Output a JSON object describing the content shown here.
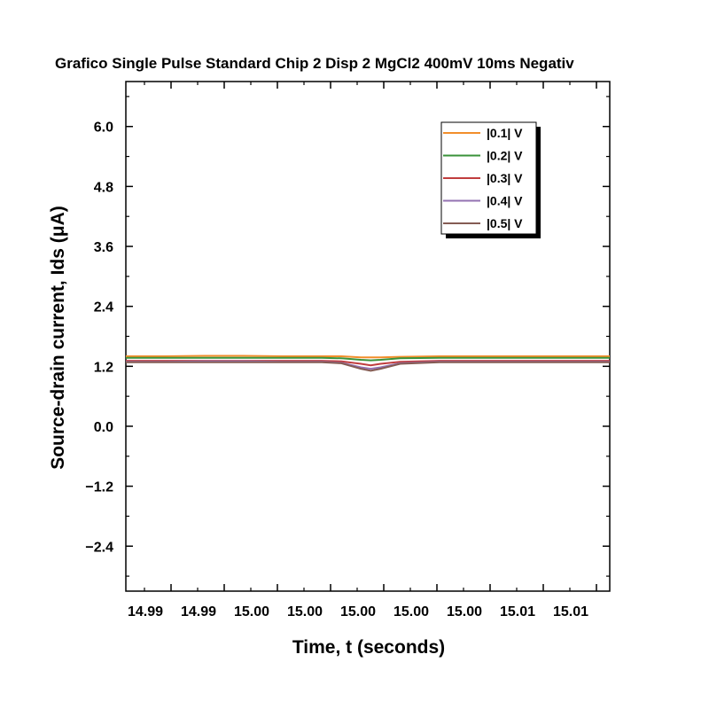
{
  "chart_data": {
    "type": "line",
    "title": "Grafico Single Pulse Standard Chip 2 Disp 2 MgCl2 400mV 10ms Negativ",
    "xlabel": "Time, t (seconds)",
    "ylabel": "Source-drain current, Ids (μA)",
    "x_ticks": [
      "14.99",
      "14.99",
      "15.00",
      "15.00",
      "15.00",
      "15.00",
      "15.00",
      "15.01",
      "15.01"
    ],
    "y_ticks": [
      6.0,
      4.8,
      3.6,
      2.4,
      1.2,
      0.0,
      -1.2,
      -2.4
    ],
    "y_tick_labels": [
      "6.0",
      "4.8",
      "3.6",
      "2.4",
      "1.2",
      "0.0",
      "−1.2",
      "−2.4"
    ],
    "ylim": [
      -3.3,
      6.9
    ],
    "xlim": [
      14.988,
      15.0127
    ],
    "grid": false,
    "legend_position": "top-right",
    "x": [
      14.988,
      14.99,
      14.992,
      14.994,
      14.996,
      14.998,
      14.999,
      15.0,
      15.0005,
      15.001,
      15.002,
      15.004,
      15.006,
      15.008,
      15.01,
      15.012,
      15.0127
    ],
    "series": [
      {
        "name": "|0.1| V",
        "color": "#f28e2b",
        "values": [
          1.4,
          1.4,
          1.41,
          1.41,
          1.4,
          1.4,
          1.4,
          1.38,
          1.38,
          1.38,
          1.39,
          1.4,
          1.4,
          1.4,
          1.4,
          1.4,
          1.4
        ]
      },
      {
        "name": "|0.2| V",
        "color": "#3a923a",
        "values": [
          1.37,
          1.37,
          1.37,
          1.37,
          1.37,
          1.37,
          1.36,
          1.33,
          1.32,
          1.33,
          1.36,
          1.37,
          1.37,
          1.37,
          1.37,
          1.37,
          1.37
        ]
      },
      {
        "name": "|0.3| V",
        "color": "#c03d3e",
        "values": [
          1.31,
          1.31,
          1.31,
          1.31,
          1.31,
          1.31,
          1.3,
          1.25,
          1.22,
          1.25,
          1.29,
          1.31,
          1.31,
          1.31,
          1.31,
          1.31,
          1.31
        ]
      },
      {
        "name": "|0.4| V",
        "color": "#9372b2",
        "values": [
          1.29,
          1.29,
          1.3,
          1.3,
          1.29,
          1.29,
          1.27,
          1.18,
          1.15,
          1.18,
          1.26,
          1.29,
          1.29,
          1.29,
          1.29,
          1.29,
          1.29
        ]
      },
      {
        "name": "|0.5| V",
        "color": "#845b53",
        "values": [
          1.28,
          1.28,
          1.28,
          1.28,
          1.28,
          1.28,
          1.26,
          1.15,
          1.11,
          1.15,
          1.25,
          1.28,
          1.28,
          1.28,
          1.28,
          1.28,
          1.28
        ]
      }
    ]
  }
}
